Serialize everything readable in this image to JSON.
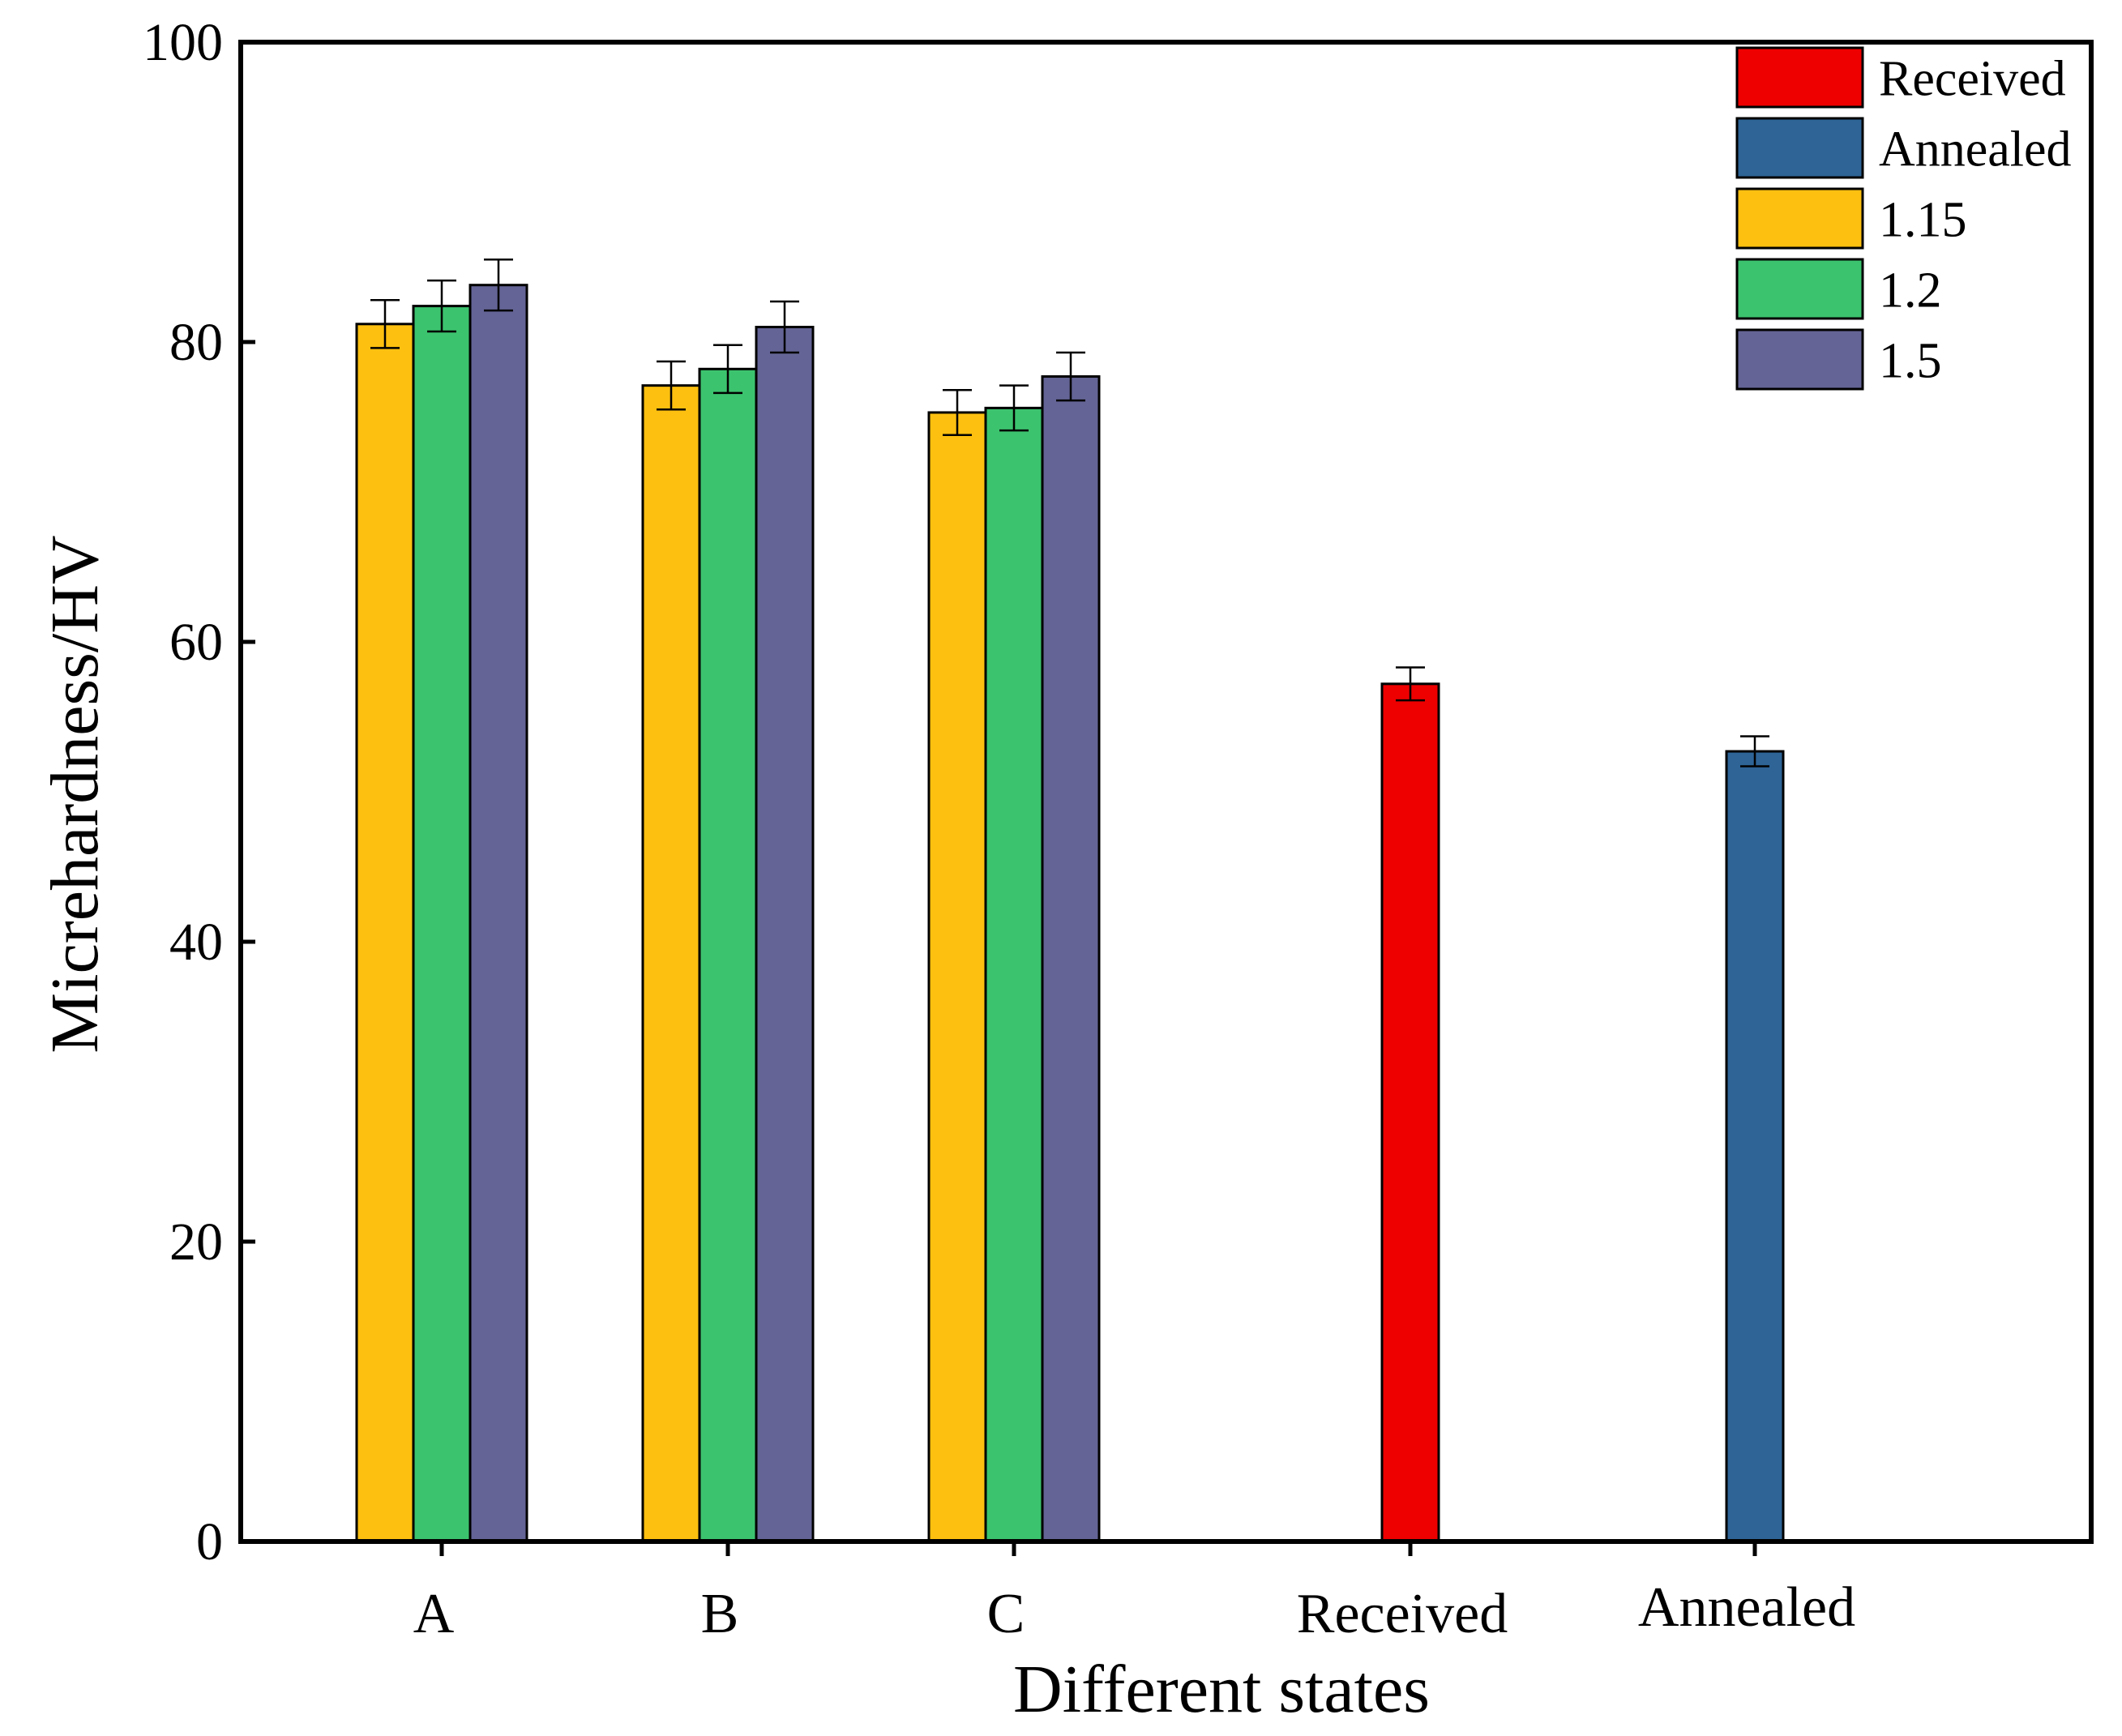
{
  "chart_data": {
    "type": "bar",
    "title": "",
    "xlabel": "Different states",
    "ylabel": "Micrehardness/HV",
    "ylim": [
      0,
      100
    ],
    "yticks": [
      0,
      20,
      40,
      60,
      80,
      100
    ],
    "categories": [
      "A",
      "B",
      "C",
      "Received",
      "Annealed"
    ],
    "grid": false,
    "legend_position": "top-right",
    "series": [
      {
        "name": "Received",
        "color": "#ee0000",
        "values": [
          null,
          null,
          null,
          57.2,
          null
        ],
        "errors": [
          null,
          null,
          null,
          1.1,
          null
        ]
      },
      {
        "name": "Annealed",
        "color": "#2e6496",
        "values": [
          null,
          null,
          null,
          null,
          52.7
        ],
        "errors": [
          null,
          null,
          null,
          null,
          1.0
        ]
      },
      {
        "name": "1.15",
        "color": "#fdc010",
        "values": [
          81.2,
          77.1,
          75.3,
          null,
          null
        ],
        "errors": [
          1.6,
          1.6,
          1.5,
          null,
          null
        ]
      },
      {
        "name": "1.2",
        "color": "#3cc36e",
        "values": [
          82.4,
          78.2,
          75.6,
          null,
          null
        ],
        "errors": [
          1.7,
          1.6,
          1.5,
          null,
          null
        ]
      },
      {
        "name": "1.5",
        "color": "#646496",
        "values": [
          83.8,
          81.0,
          77.7,
          null,
          null
        ],
        "errors": [
          1.7,
          1.7,
          1.6,
          null,
          null
        ]
      }
    ]
  }
}
